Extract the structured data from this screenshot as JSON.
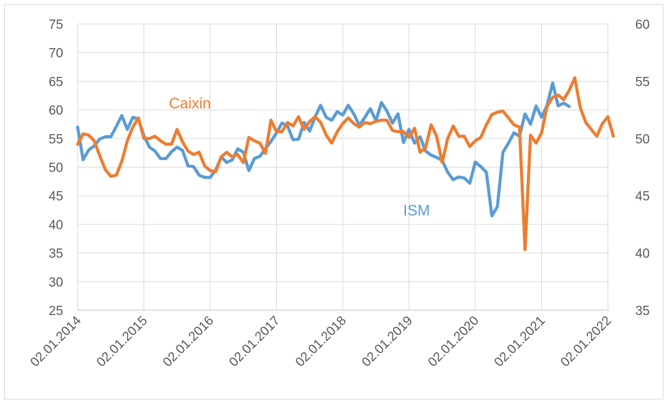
{
  "chart_data": {
    "type": "line",
    "title": "",
    "grid": true,
    "x_ticks": [
      "02.01.2014",
      "02.01.2015",
      "02.01.2016",
      "02.01.2017",
      "02.01.2018",
      "02.01.2019",
      "02.01.2020",
      "02.01.2021",
      "02.01.2022"
    ],
    "ylim_left": [
      25,
      75
    ],
    "y_ticks_left": [
      75,
      70,
      65,
      60,
      55,
      50,
      45,
      40,
      35,
      30,
      25
    ],
    "ylim_right": [
      35,
      60
    ],
    "y_ticks_right": [
      60,
      55,
      50,
      45,
      40,
      35
    ],
    "colors": {
      "ISM": "#5b9bd5",
      "Caixin": "#ed7d31"
    },
    "series": [
      {
        "name": "ISM",
        "axis": "left",
        "start": "2014-01",
        "values": [
          57,
          51.3,
          53,
          53.7,
          54.9,
          55.3,
          55.3,
          57.1,
          59,
          56.6,
          58.7,
          58.4,
          55.5,
          53.5,
          52.8,
          51.5,
          51.5,
          52.7,
          53.5,
          52.9,
          50.2,
          50.1,
          48.6,
          48.2,
          48.2,
          49.5,
          51.8,
          50.8,
          51.3,
          53.2,
          52.6,
          49.4,
          51.5,
          51.9,
          53.2,
          54.5,
          56,
          57.7,
          57.2,
          54.8,
          54.9,
          57.8,
          56.3,
          58.8,
          60.8,
          58.7,
          58.2,
          59.7,
          59.1,
          60.8,
          59.3,
          57.3,
          58.7,
          60.2,
          58.1,
          61.3,
          59.8,
          57.7,
          59.3,
          54.3,
          56.6,
          54.2,
          55.3,
          52.8,
          52.1,
          51.7,
          51.2,
          49.1,
          47.8,
          48.3,
          48.1,
          47.2,
          50.9,
          50.1,
          49.1,
          41.5,
          43.1,
          52.6,
          54.2,
          56,
          55.4,
          59.3,
          57.5,
          60.7,
          58.7,
          60.8,
          64.7,
          60.7,
          61.2,
          60.6
        ]
      },
      {
        "name": "Caixin",
        "axis": "right",
        "start": "2014-01",
        "values": [
          49.5,
          50.4,
          50.3,
          49.8,
          48.5,
          47.3,
          46.7,
          46.8,
          48,
          49.8,
          51,
          51.8,
          50,
          50,
          50.2,
          49.8,
          49.5,
          49.5,
          50.8,
          49.7,
          48.9,
          48.6,
          48.8,
          47.6,
          47.2,
          47.1,
          48.4,
          48.8,
          48.4,
          48.6,
          47.9,
          50.1,
          49.8,
          49.6,
          48.7,
          51.6,
          50.6,
          50.6,
          51.4,
          51.1,
          51.9,
          50.8,
          51.5,
          51.9,
          51.4,
          50.3,
          49.6,
          50.6,
          51.3,
          51.8,
          51.3,
          51,
          51.4,
          51.3,
          51.5,
          51.6,
          51.6,
          50.7,
          50.6,
          50.6,
          50.1,
          50.9,
          48.8,
          49.2,
          51.2,
          50.2,
          47.9,
          50,
          51.1,
          50.2,
          50.2,
          49.3,
          49.8,
          50.1,
          51.2,
          52.1,
          52.3,
          52.4,
          51.8,
          51.2,
          51,
          40.3,
          50.3,
          49.6,
          50.5,
          52.8,
          53.6,
          53.8,
          53.4,
          54.2,
          55.3,
          52.7,
          51.4,
          50.8,
          50.2,
          51.3,
          51.9,
          50.2
        ]
      }
    ],
    "annotations": [
      {
        "label": "Caixin",
        "series": "Caixin"
      },
      {
        "label": "ISM",
        "series": "ISM"
      }
    ]
  }
}
